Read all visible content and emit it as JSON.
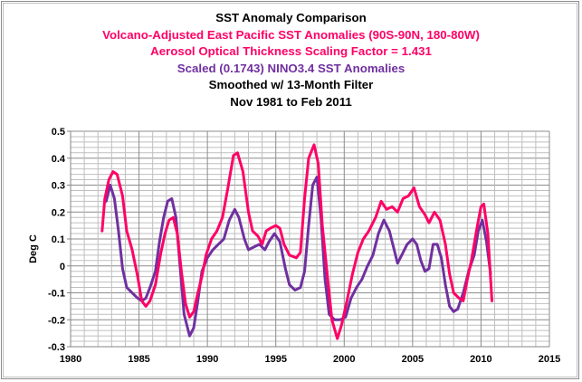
{
  "chart_data": {
    "type": "line",
    "title": "SST Anomaly Comparison",
    "subtitles": [
      {
        "text": "Volcano-Adjusted East Pacific SST Anomalies (90S-90N, 180-80W)",
        "color": "#ff0066"
      },
      {
        "text": "Aerosol Optical Thickness Scaling Factor = 1.431",
        "color": "#ff0066"
      },
      {
        "text": "Scaled (0.1743) NINO3.4 SST Anomalies",
        "color": "#7030a0"
      },
      {
        "text": "Smoothed w/ 13-Month Filter",
        "color": "#000000"
      },
      {
        "text": "Nov 1981 to Feb 2011",
        "color": "#000000"
      }
    ],
    "xlabel": "",
    "ylabel": "Deg C",
    "xlim": [
      1980,
      2015
    ],
    "ylim": [
      -0.3,
      0.5
    ],
    "xticks": [
      "1980",
      "1985",
      "1990",
      "1995",
      "2000",
      "2005",
      "2010",
      "2015"
    ],
    "yticks": [
      "0.5",
      "0.4",
      "0.3",
      "0.2",
      "0.1",
      "0",
      "-0.1",
      "-0.2",
      "-0.3"
    ],
    "grid": true,
    "legend": "none",
    "series": [
      {
        "name": "Volcano-Adjusted East Pacific SST Anomalies",
        "color": "#ff0066",
        "points": [
          [
            1982.3,
            0.13
          ],
          [
            1982.5,
            0.25
          ],
          [
            1982.8,
            0.32
          ],
          [
            1983.1,
            0.35
          ],
          [
            1983.4,
            0.34
          ],
          [
            1983.8,
            0.26
          ],
          [
            1984.1,
            0.13
          ],
          [
            1984.5,
            0.06
          ],
          [
            1984.9,
            -0.04
          ],
          [
            1985.2,
            -0.13
          ],
          [
            1985.5,
            -0.15
          ],
          [
            1985.8,
            -0.13
          ],
          [
            1986.2,
            -0.07
          ],
          [
            1986.6,
            0.05
          ],
          [
            1986.9,
            0.12
          ],
          [
            1987.2,
            0.17
          ],
          [
            1987.5,
            0.18
          ],
          [
            1987.8,
            0.12
          ],
          [
            1988.1,
            -0.02
          ],
          [
            1988.4,
            -0.14
          ],
          [
            1988.7,
            -0.19
          ],
          [
            1989.0,
            -0.17
          ],
          [
            1989.3,
            -0.1
          ],
          [
            1989.6,
            -0.04
          ],
          [
            1989.9,
            0.04
          ],
          [
            1990.3,
            0.1
          ],
          [
            1990.7,
            0.13
          ],
          [
            1991.1,
            0.18
          ],
          [
            1991.5,
            0.29
          ],
          [
            1991.9,
            0.41
          ],
          [
            1992.2,
            0.42
          ],
          [
            1992.6,
            0.35
          ],
          [
            1993.0,
            0.2
          ],
          [
            1993.3,
            0.13
          ],
          [
            1993.7,
            0.11
          ],
          [
            1994.0,
            0.08
          ],
          [
            1994.3,
            0.13
          ],
          [
            1994.6,
            0.14
          ],
          [
            1995.0,
            0.15
          ],
          [
            1995.3,
            0.14
          ],
          [
            1995.6,
            0.08
          ],
          [
            1996.0,
            0.04
          ],
          [
            1996.5,
            0.03
          ],
          [
            1996.8,
            0.05
          ],
          [
            1997.1,
            0.25
          ],
          [
            1997.4,
            0.4
          ],
          [
            1997.8,
            0.45
          ],
          [
            1998.1,
            0.38
          ],
          [
            1998.4,
            0.15
          ],
          [
            1998.8,
            -0.05
          ],
          [
            1999.1,
            -0.2
          ],
          [
            1999.5,
            -0.27
          ],
          [
            1999.8,
            -0.22
          ],
          [
            2000.2,
            -0.13
          ],
          [
            2000.6,
            -0.03
          ],
          [
            2001.0,
            0.05
          ],
          [
            2001.4,
            0.1
          ],
          [
            2001.8,
            0.13
          ],
          [
            2002.3,
            0.18
          ],
          [
            2002.7,
            0.24
          ],
          [
            2003.1,
            0.21
          ],
          [
            2003.5,
            0.22
          ],
          [
            2003.9,
            0.2
          ],
          [
            2004.3,
            0.25
          ],
          [
            2004.7,
            0.26
          ],
          [
            2005.1,
            0.29
          ],
          [
            2005.5,
            0.22
          ],
          [
            2005.9,
            0.19
          ],
          [
            2006.2,
            0.16
          ],
          [
            2006.6,
            0.2
          ],
          [
            2007.0,
            0.17
          ],
          [
            2007.4,
            0.08
          ],
          [
            2007.7,
            -0.03
          ],
          [
            2008.0,
            -0.1
          ],
          [
            2008.4,
            -0.12
          ],
          [
            2008.7,
            -0.13
          ],
          [
            2009.0,
            -0.05
          ],
          [
            2009.3,
            0.02
          ],
          [
            2009.7,
            0.14
          ],
          [
            2010.0,
            0.22
          ],
          [
            2010.2,
            0.23
          ],
          [
            2010.5,
            0.12
          ],
          [
            2010.8,
            -0.13
          ]
        ]
      },
      {
        "name": "Scaled (0.1743) NINO3.4 SST Anomalies",
        "color": "#7030a0",
        "points": [
          [
            1982.6,
            0.24
          ],
          [
            1982.9,
            0.3
          ],
          [
            1983.2,
            0.25
          ],
          [
            1983.5,
            0.13
          ],
          [
            1983.8,
            -0.01
          ],
          [
            1984.1,
            -0.08
          ],
          [
            1984.5,
            -0.1
          ],
          [
            1984.9,
            -0.12
          ],
          [
            1985.2,
            -0.13
          ],
          [
            1985.5,
            -0.12
          ],
          [
            1985.8,
            -0.08
          ],
          [
            1986.2,
            -0.02
          ],
          [
            1986.5,
            0.09
          ],
          [
            1986.8,
            0.18
          ],
          [
            1987.1,
            0.24
          ],
          [
            1987.4,
            0.25
          ],
          [
            1987.7,
            0.18
          ],
          [
            1988.0,
            0.0
          ],
          [
            1988.3,
            -0.18
          ],
          [
            1988.7,
            -0.26
          ],
          [
            1989.0,
            -0.23
          ],
          [
            1989.3,
            -0.13
          ],
          [
            1989.6,
            -0.02
          ],
          [
            1990.0,
            0.03
          ],
          [
            1990.4,
            0.06
          ],
          [
            1990.8,
            0.08
          ],
          [
            1991.2,
            0.1
          ],
          [
            1991.6,
            0.17
          ],
          [
            1992.0,
            0.21
          ],
          [
            1992.3,
            0.18
          ],
          [
            1992.7,
            0.1
          ],
          [
            1993.0,
            0.06
          ],
          [
            1993.4,
            0.07
          ],
          [
            1993.8,
            0.08
          ],
          [
            1994.2,
            0.06
          ],
          [
            1994.5,
            0.09
          ],
          [
            1994.9,
            0.12
          ],
          [
            1995.3,
            0.09
          ],
          [
            1995.7,
            -0.01
          ],
          [
            1996.0,
            -0.07
          ],
          [
            1996.4,
            -0.09
          ],
          [
            1996.8,
            -0.08
          ],
          [
            1997.1,
            -0.02
          ],
          [
            1997.4,
            0.15
          ],
          [
            1997.7,
            0.3
          ],
          [
            1998.0,
            0.33
          ],
          [
            1998.3,
            0.18
          ],
          [
            1998.6,
            -0.05
          ],
          [
            1998.9,
            -0.18
          ],
          [
            1999.3,
            -0.2
          ],
          [
            1999.7,
            -0.2
          ],
          [
            2000.1,
            -0.19
          ],
          [
            2000.5,
            -0.12
          ],
          [
            2000.9,
            -0.08
          ],
          [
            2001.3,
            -0.05
          ],
          [
            2001.7,
            0.0
          ],
          [
            2002.1,
            0.04
          ],
          [
            2002.5,
            0.12
          ],
          [
            2002.9,
            0.17
          ],
          [
            2003.3,
            0.13
          ],
          [
            2003.6,
            0.07
          ],
          [
            2003.9,
            0.01
          ],
          [
            2004.2,
            0.04
          ],
          [
            2004.6,
            0.08
          ],
          [
            2005.0,
            0.1
          ],
          [
            2005.3,
            0.08
          ],
          [
            2005.6,
            0.02
          ],
          [
            2005.9,
            -0.02
          ],
          [
            2006.2,
            -0.01
          ],
          [
            2006.5,
            0.08
          ],
          [
            2006.8,
            0.08
          ],
          [
            2007.1,
            0.03
          ],
          [
            2007.4,
            -0.07
          ],
          [
            2007.7,
            -0.15
          ],
          [
            2008.0,
            -0.17
          ],
          [
            2008.3,
            -0.16
          ],
          [
            2008.7,
            -0.1
          ],
          [
            2009.1,
            -0.02
          ],
          [
            2009.5,
            0.04
          ],
          [
            2009.8,
            0.13
          ],
          [
            2010.1,
            0.17
          ],
          [
            2010.4,
            0.09
          ],
          [
            2010.7,
            -0.03
          ]
        ]
      }
    ]
  }
}
